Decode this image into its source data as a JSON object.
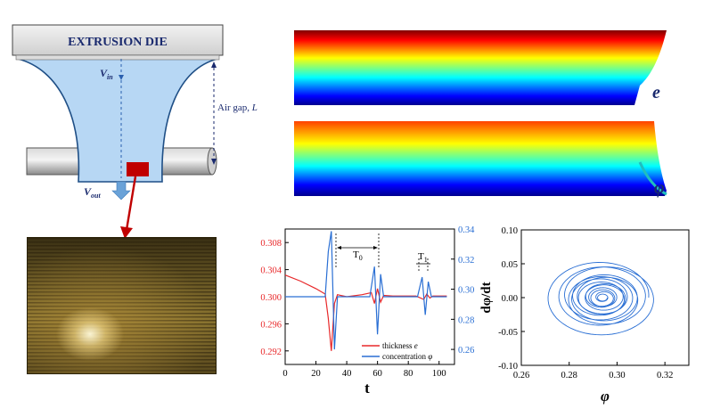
{
  "die": {
    "label": "EXTRUSION DIE",
    "v_in": "V",
    "v_in_sub": "in",
    "v_out": "V",
    "v_out_sub": "out",
    "air_gap": "Air gap, ",
    "air_gap_var": "L"
  },
  "maps": {
    "e_label": "e",
    "phi_label": "φ"
  },
  "colors": {
    "die_fill": "#b7d7f4",
    "die_stroke": "#1f4f86",
    "arrow_red": "#c00000",
    "thickness_line": "#e8282a",
    "concentration_line": "#2a6fd4"
  },
  "chart_data": [
    {
      "type": "line",
      "xlabel": "t",
      "xlim": [
        0,
        110
      ],
      "xticks": [
        0,
        20,
        40,
        60,
        80,
        100
      ],
      "left_ylim": [
        0.29,
        0.31
      ],
      "left_yticks": [
        "0.292",
        "0.296",
        "0.300",
        "0.304",
        "0.308"
      ],
      "right_ylim": [
        0.25,
        0.34
      ],
      "right_yticks": [
        "0.26",
        "0.28",
        "0.30",
        "0.32",
        "0.34"
      ],
      "annotations": [
        "T",
        "0",
        "T",
        "1"
      ],
      "series": [
        {
          "name": "thickness ",
          "name_var": "e",
          "axis": "left",
          "color": "#e8282a",
          "x": [
            0,
            10,
            20,
            26,
            28,
            30,
            32,
            34,
            40,
            50,
            56,
            58,
            60,
            62,
            64,
            70,
            85,
            90,
            92,
            94,
            96,
            105
          ],
          "y": [
            0.3032,
            0.3023,
            0.3012,
            0.3004,
            0.2968,
            0.292,
            0.299,
            0.3003,
            0.3,
            0.3003,
            0.3006,
            0.299,
            0.3012,
            0.2992,
            0.3002,
            0.3001,
            0.3001,
            0.2996,
            0.3004,
            0.2998,
            0.3001,
            0.3001
          ]
        },
        {
          "name": "concentration ",
          "name_var": "φ",
          "axis": "right",
          "color": "#2a6fd4",
          "x": [
            0,
            20,
            26,
            28,
            30,
            32,
            34,
            40,
            55,
            58,
            60,
            62,
            64,
            70,
            86,
            89,
            91,
            93,
            95,
            105
          ],
          "y": [
            0.295,
            0.295,
            0.295,
            0.325,
            0.3385,
            0.26,
            0.295,
            0.295,
            0.295,
            0.315,
            0.27,
            0.31,
            0.295,
            0.295,
            0.295,
            0.308,
            0.283,
            0.305,
            0.295,
            0.295
          ]
        }
      ]
    },
    {
      "type": "scatter",
      "xlabel": "φ",
      "ylabel": "dφ/dt",
      "xlim": [
        0.26,
        0.33
      ],
      "ylim": [
        -0.1,
        0.1
      ],
      "xticks": [
        "0.26",
        "0.28",
        "0.30",
        "0.32"
      ],
      "yticks": [
        "0.10",
        "0.05",
        "0.00",
        "-0.05",
        "-0.10"
      ],
      "series": [
        {
          "name": "",
          "color": "#2a6fd4",
          "center": [
            0.294,
            0.0
          ],
          "x_amplitude": 0.024,
          "y_amplitude": 0.058
        }
      ]
    }
  ]
}
